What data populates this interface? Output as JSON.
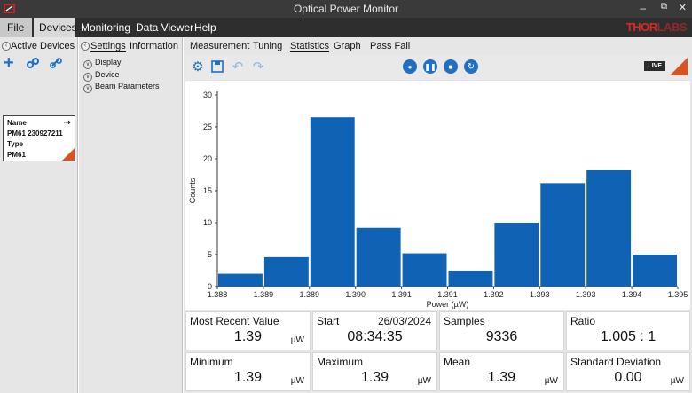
{
  "window": {
    "title": "Optical Power Monitor",
    "brand": "THORLABS",
    "min": "‒",
    "restore": "⧉",
    "close": "✕"
  },
  "menu": {
    "items": [
      "File",
      "Devices",
      "Monitoring",
      "Data Viewer",
      "Help"
    ]
  },
  "left_panel": {
    "header": "Active Devices",
    "device": {
      "name_label": "Name",
      "name": "PM61 230927211",
      "type_label": "Type",
      "type": "PM61"
    }
  },
  "settings_panel": {
    "tabs": [
      "Settings",
      "Information"
    ],
    "tree": [
      "Display",
      "Device",
      "Beam Parameters"
    ]
  },
  "main": {
    "tabs": [
      "Measurement",
      "Tuning",
      "Statistics",
      "Graph",
      "Pass Fail"
    ],
    "active_tab": "Statistics",
    "live_label": "LIVE"
  },
  "chart_data": {
    "type": "bar",
    "xlabel": "Power (µW)",
    "ylabel": "Counts",
    "ylim": [
      0,
      30
    ],
    "yticks": [
      0,
      5,
      10,
      15,
      20,
      25,
      30
    ],
    "xtick_labels": [
      "1.388",
      "1.389",
      "1.389",
      "1.390",
      "1.391",
      "1.391",
      "1.392",
      "1.393",
      "1.393",
      "1.394",
      "1.395"
    ],
    "values": [
      2.0,
      4.6,
      26.5,
      9.2,
      5.2,
      2.5,
      10.0,
      16.2,
      18.2,
      5.0
    ],
    "bar_color": "#0f62b4"
  },
  "stats": [
    {
      "label": "Most Recent Value",
      "value": "1.39",
      "unit": "µW"
    },
    {
      "label": "Start",
      "date": "26/03/2024",
      "value": "08:34:35"
    },
    {
      "label": "Samples",
      "value": "9336"
    },
    {
      "label": "Ratio",
      "value": "1.005 : 1"
    },
    {
      "label": "Minimum",
      "value": "1.39",
      "unit": "µW"
    },
    {
      "label": "Maximum",
      "value": "1.39",
      "unit": "µW"
    },
    {
      "label": "Mean",
      "value": "1.39",
      "unit": "µW"
    },
    {
      "label": "Standard Deviation",
      "value": "0.00",
      "unit": "µW"
    }
  ]
}
